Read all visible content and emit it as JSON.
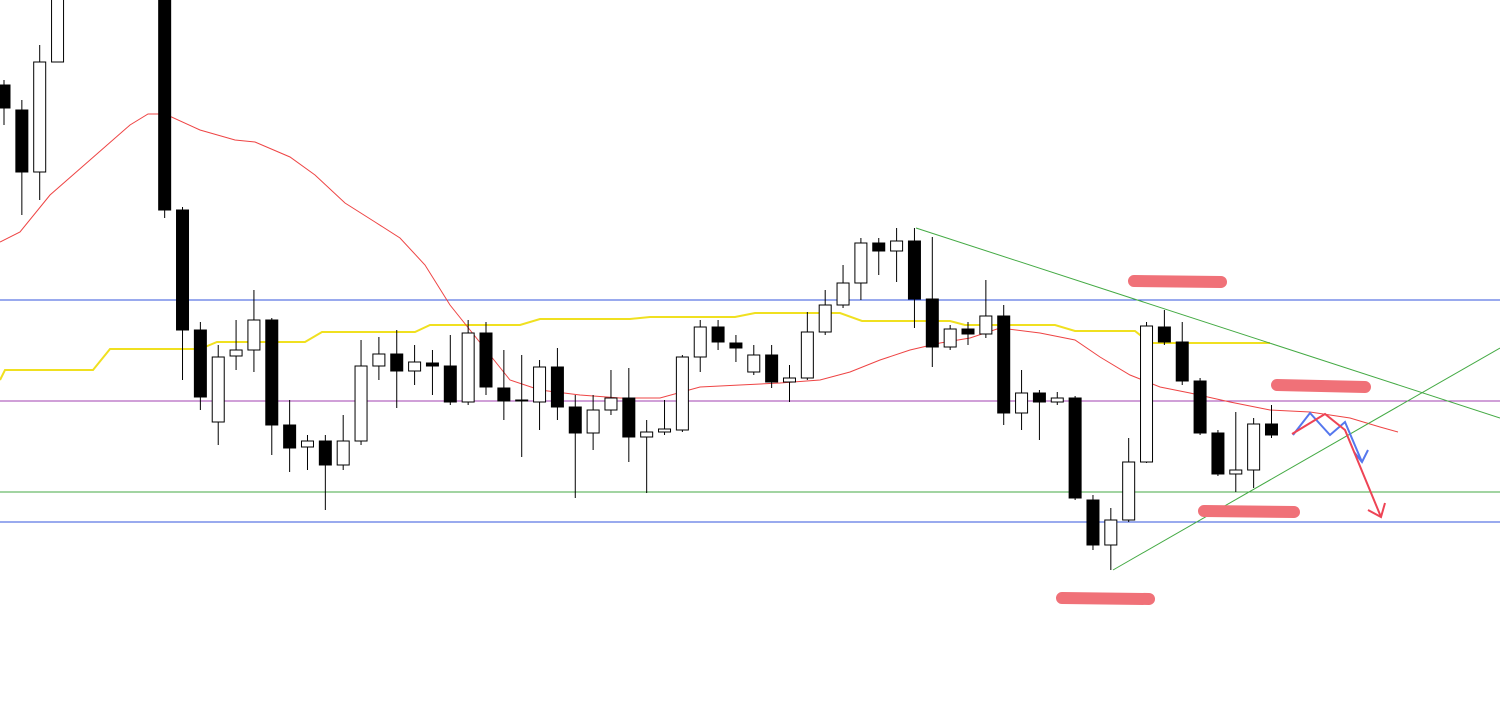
{
  "chart_data": {
    "type": "candlestick",
    "x": [
      0,
      1,
      2,
      3,
      9,
      10,
      11,
      12,
      13,
      14,
      15,
      16,
      17,
      18,
      19,
      20,
      21,
      22,
      23,
      24,
      25,
      26,
      27,
      28,
      29,
      30,
      31,
      32,
      33,
      34,
      35,
      36,
      37,
      38,
      39,
      40,
      41,
      42,
      43,
      44,
      45,
      46,
      47,
      48,
      49,
      50,
      51,
      52,
      53,
      54,
      55,
      56,
      57,
      58,
      59,
      60,
      61,
      62,
      63,
      64,
      65,
      66,
      67,
      68,
      69,
      70,
      71
    ],
    "open": [
      640,
      615,
      553,
      663,
      800,
      515,
      395,
      303,
      369,
      375,
      405,
      300,
      278,
      284,
      260,
      284,
      359,
      371,
      354,
      362,
      359,
      323,
      392,
      337,
      324,
      323,
      358,
      318,
      292,
      315,
      327,
      288,
      293,
      295,
      368,
      398,
      382,
      353,
      370,
      343,
      347,
      393,
      420,
      442,
      482,
      474,
      484,
      426,
      378,
      396,
      391,
      409,
      312,
      332,
      323,
      327,
      225,
      180,
      205,
      263,
      398,
      383,
      344,
      292,
      251,
      255,
      301
    ],
    "high": [
      645,
      625,
      680,
      780,
      810,
      518,
      403,
      380,
      405,
      435,
      407,
      325,
      290,
      290,
      310,
      385,
      388,
      395,
      380,
      375,
      390,
      405,
      403,
      375,
      370,
      365,
      377,
      330,
      330,
      355,
      357,
      305,
      325,
      370,
      405,
      405,
      390,
      380,
      380,
      360,
      413,
      435,
      460,
      487,
      487,
      497,
      497,
      488,
      400,
      403,
      445,
      420,
      355,
      335,
      333,
      329,
      230,
      217,
      287,
      403,
      415,
      403,
      347,
      295,
      313,
      307,
      320
    ],
    "low": [
      600,
      510,
      525,
      663,
      507,
      345,
      315,
      280,
      355,
      353,
      270,
      253,
      255,
      215,
      255,
      280,
      345,
      317,
      340,
      330,
      320,
      320,
      330,
      305,
      268,
      295,
      305,
      227,
      275,
      310,
      263,
      232,
      290,
      293,
      353,
      375,
      363,
      350,
      337,
      323,
      345,
      390,
      417,
      425,
      450,
      443,
      397,
      358,
      375,
      380,
      387,
      300,
      295,
      285,
      320,
      225,
      175,
      155,
      203,
      262,
      380,
      340,
      290,
      249,
      233,
      237,
      287
    ],
    "close": [
      617,
      553,
      663,
      760,
      515,
      395,
      328,
      368,
      375,
      405,
      300,
      277,
      284,
      260,
      284,
      359,
      371,
      354,
      363,
      359,
      323,
      392,
      338,
      324,
      325,
      358,
      318,
      292,
      315,
      327,
      288,
      293,
      296,
      368,
      398,
      383,
      377,
      370,
      343,
      347,
      393,
      420,
      442,
      482,
      474,
      484,
      426,
      378,
      396,
      391,
      409,
      312,
      332,
      323,
      327,
      227,
      180,
      205,
      263,
      399,
      383,
      344,
      292,
      251,
      255,
      301,
      290
    ],
    "xlim": [
      -0.224,
      83.8
    ],
    "ylim": [
      0,
      725
    ],
    "up_color": "#ffffff",
    "down_color": "#000000"
  }
}
